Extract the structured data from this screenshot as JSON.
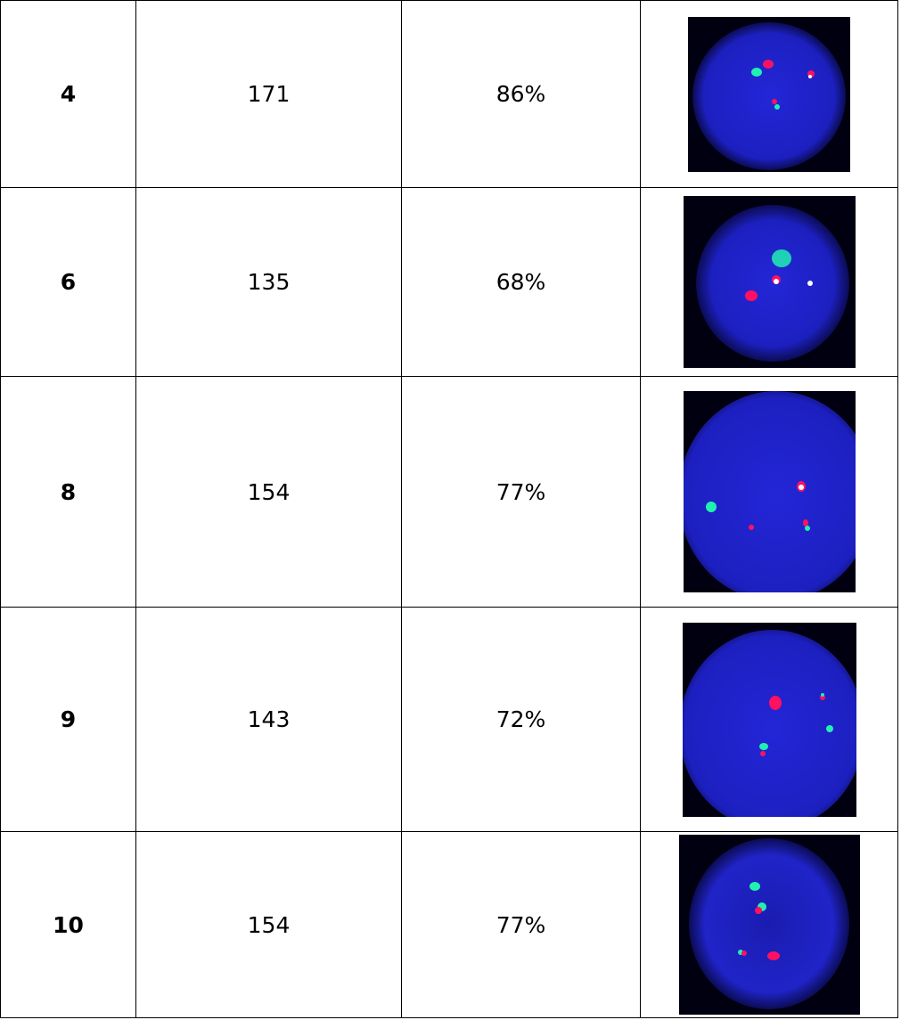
{
  "rows": [
    {
      "id": "4",
      "count": "171",
      "percent": "86%",
      "img": {
        "bg": "#000010",
        "cell": "#1f22c8"
      }
    },
    {
      "id": "6",
      "count": "135",
      "percent": "68%",
      "img": {
        "bg": "#000010",
        "cell": "#1f22c8"
      }
    },
    {
      "id": "8",
      "count": "154",
      "percent": "77%",
      "img": {
        "bg": "#000010",
        "cell": "#1f22c8"
      }
    },
    {
      "id": "9",
      "count": "143",
      "percent": "72%",
      "img": {
        "bg": "#000010",
        "cell": "#1f22c8"
      }
    },
    {
      "id": "10",
      "count": "154",
      "percent": "77%",
      "img": {
        "bg": "#000010",
        "cell": "#1f22c8"
      }
    }
  ],
  "signal_colors": {
    "red": "#ff1060",
    "green": "#20f0b0",
    "white": "#ffffff"
  }
}
